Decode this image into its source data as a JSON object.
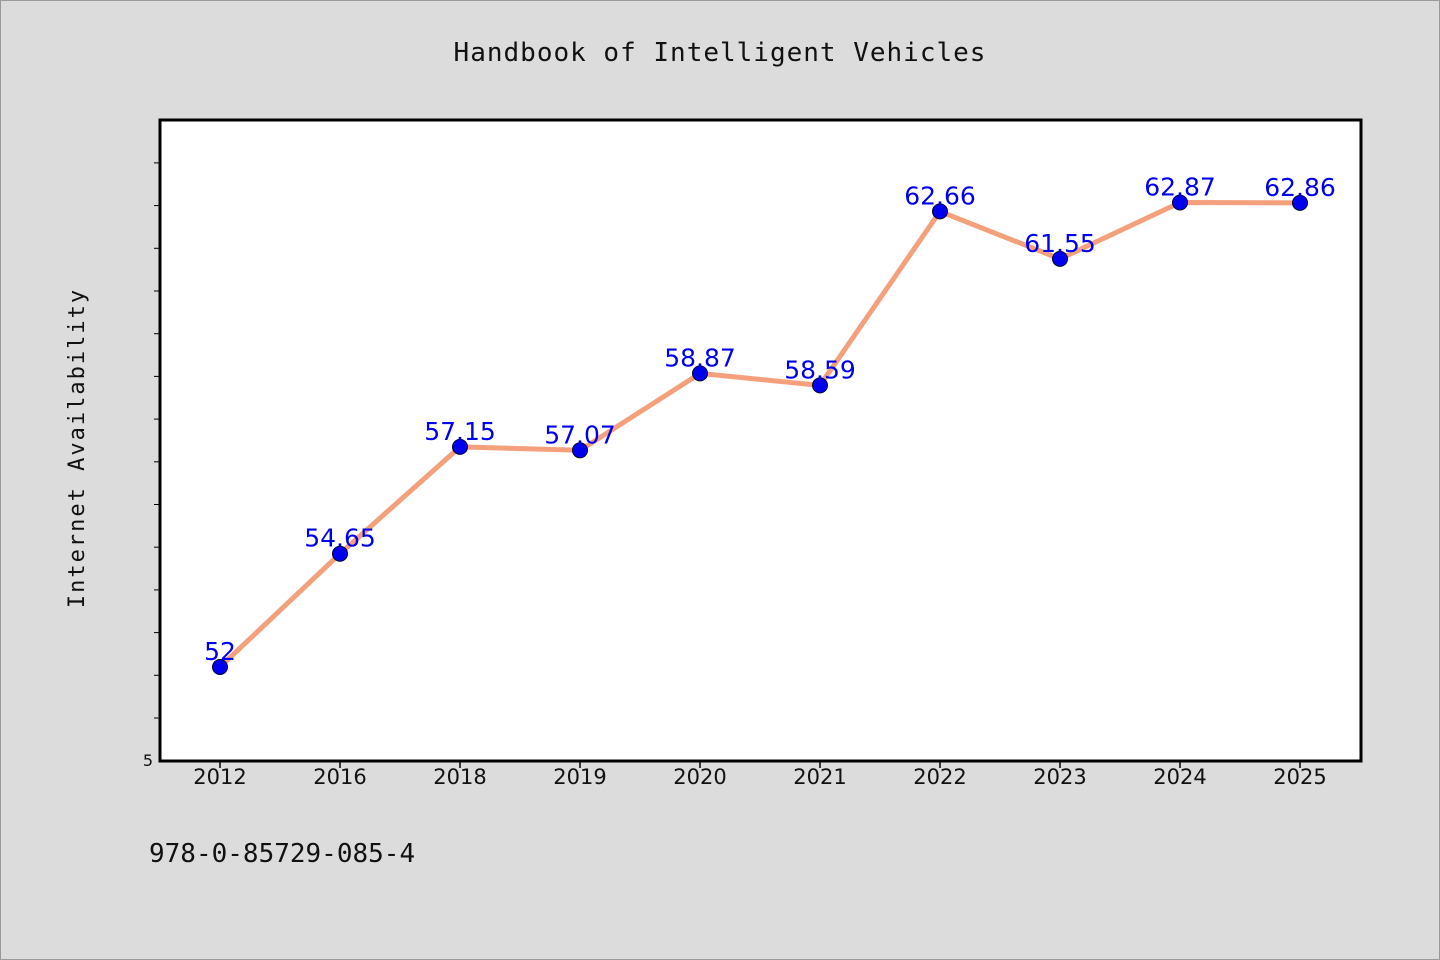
{
  "chart_data": {
    "type": "line",
    "title": "Handbook of Intelligent Vehicles",
    "xlabel": "",
    "ylabel": "Internet Availability",
    "categories": [
      "2012",
      "2016",
      "2018",
      "2019",
      "2020",
      "2021",
      "2022",
      "2023",
      "2024",
      "2025"
    ],
    "values": [
      52,
      54.65,
      57.15,
      57.07,
      58.87,
      58.59,
      62.66,
      61.55,
      62.87,
      62.86
    ],
    "data_labels": [
      "52",
      "54.65",
      "57.15",
      "57.07",
      "58.87",
      "58.59",
      "62.66",
      "61.55",
      "62.87",
      "62.86"
    ],
    "y_tick_labels": [
      "5"
    ],
    "ylim": [
      49.8,
      64.8
    ],
    "grid": false,
    "legend": "none",
    "colors": {
      "line": "#f4a07c",
      "marker": "#0000ee",
      "marker_edge": "#000033",
      "label": "#0000ee",
      "background": "#dcdcdc",
      "plot_background": "#ffffff"
    }
  },
  "footer": {
    "isbn": "978-0-85729-085-4"
  }
}
